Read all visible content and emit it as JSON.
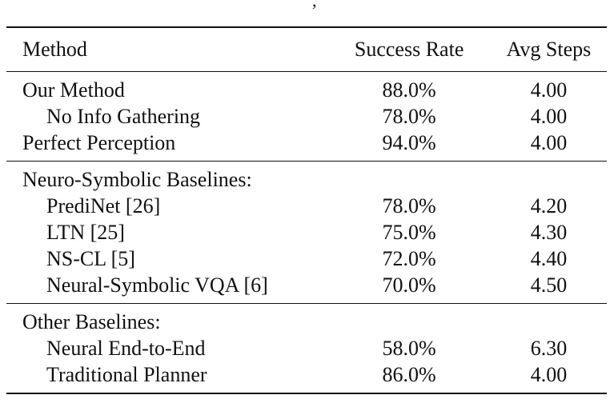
{
  "fragment": ",",
  "header": {
    "method": "Method",
    "success_rate": "Success Rate",
    "avg_steps": "Avg Steps"
  },
  "groups": [
    {
      "title": "",
      "rows": [
        {
          "method": "Our Method",
          "success_rate": "88.0%",
          "avg_steps": "4.00"
        },
        {
          "method": "No Info Gathering",
          "success_rate": "78.0%",
          "avg_steps": "4.00"
        },
        {
          "method": "Perfect Perception",
          "success_rate": "94.0%",
          "avg_steps": "4.00"
        }
      ]
    },
    {
      "title": "Neuro-Symbolic Baselines:",
      "rows": [
        {
          "method": "PrediNet [26]",
          "success_rate": "78.0%",
          "avg_steps": "4.20"
        },
        {
          "method": "LTN [25]",
          "success_rate": "75.0%",
          "avg_steps": "4.30"
        },
        {
          "method": "NS-CL [5]",
          "success_rate": "72.0%",
          "avg_steps": "4.40"
        },
        {
          "method": "Neural-Symbolic VQA [6]",
          "success_rate": "70.0%",
          "avg_steps": "4.50"
        }
      ]
    },
    {
      "title": "Other Baselines:",
      "rows": [
        {
          "method": "Neural End-to-End",
          "success_rate": "58.0%",
          "avg_steps": "6.30"
        },
        {
          "method": "Traditional Planner",
          "success_rate": "86.0%",
          "avg_steps": "4.00"
        }
      ]
    }
  ]
}
